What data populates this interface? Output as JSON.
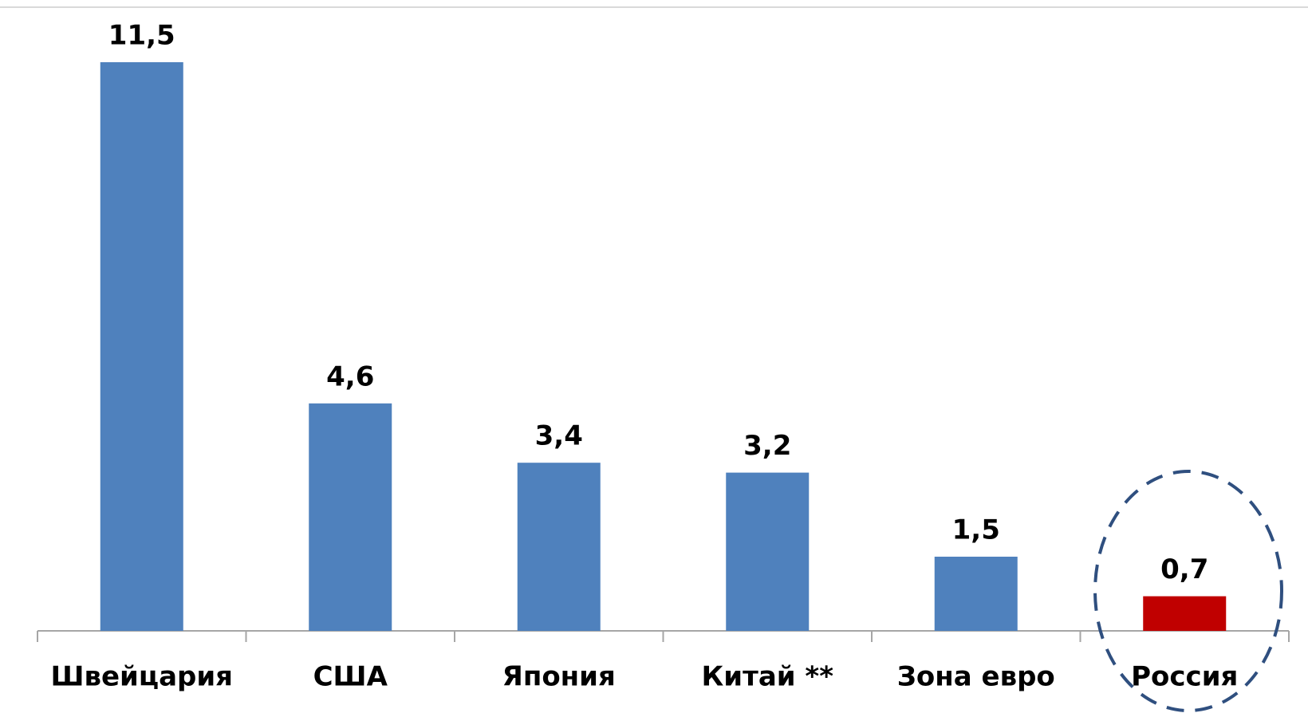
{
  "chart_data": {
    "type": "bar",
    "categories": [
      "Швейцария",
      "США",
      "Япония",
      "Китай **",
      "Зона евро",
      "Россия"
    ],
    "values": [
      11.5,
      4.6,
      3.4,
      3.2,
      1.5,
      0.7
    ],
    "value_labels": [
      "11,5",
      "4,6",
      "3,4",
      "3,2",
      "1,5",
      "0,7"
    ],
    "colors": [
      "#4f81bd",
      "#4f81bd",
      "#4f81bd",
      "#4f81bd",
      "#4f81bd",
      "#c00000"
    ]
  }
}
